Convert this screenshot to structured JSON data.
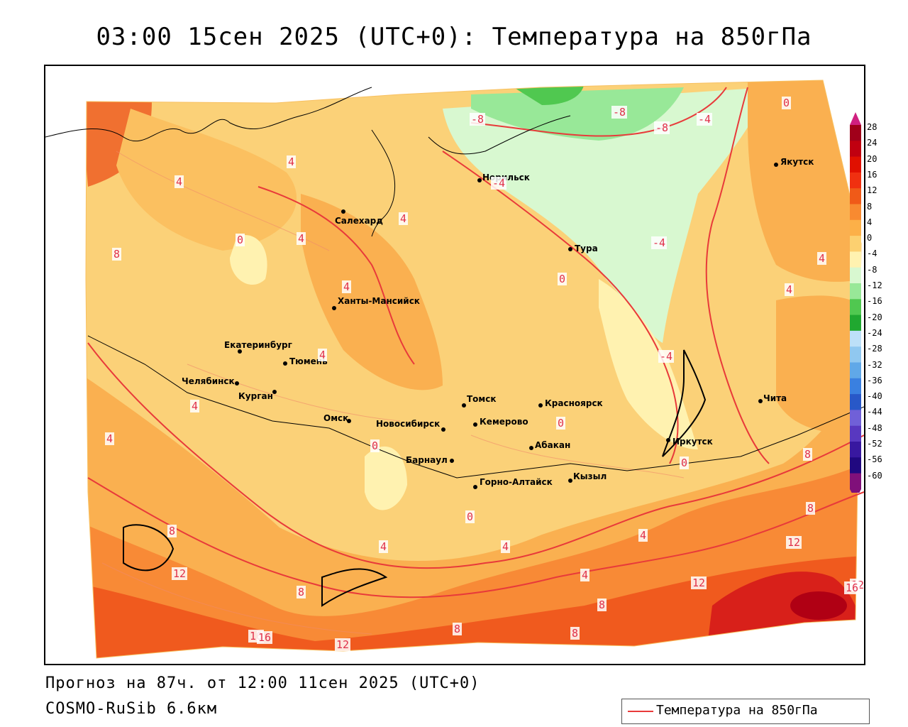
{
  "header": {
    "title": "03:00 15сен 2025 (UTC+0): Температура на 850гПа"
  },
  "footer": {
    "forecast": "Прогноз на 87ч. от 12:00 11сен 2025 (UTC+0)",
    "model": "COSMO-RuSib 6.6км"
  },
  "legend": {
    "label": "Температура на 850гПа",
    "line_color": "#e83a3a"
  },
  "colorbar": {
    "labels": [
      "28",
      "24",
      "20",
      "16",
      "12",
      "8",
      "4",
      "0",
      "-4",
      "-8",
      "-12",
      "-16",
      "-20",
      "-24",
      "-28",
      "-32",
      "-36",
      "-40",
      "-44",
      "-48",
      "-52",
      "-56",
      "-60"
    ],
    "colors": [
      "#a0001a",
      "#c00010",
      "#e01000",
      "#f03010",
      "#f05a18",
      "#f88a30",
      "#fcb048",
      "#fcd070",
      "#fff2b0",
      "#d8f8d0",
      "#98e898",
      "#50c850",
      "#20a830",
      "#bde0f8",
      "#90c8f0",
      "#60a8e8",
      "#3a80e0",
      "#2858c8",
      "#7060d8",
      "#5838c0",
      "#3818a0",
      "#200880",
      "#80107a"
    ]
  },
  "cities": [
    {
      "name": "Норильск"
    },
    {
      "name": "Якутск"
    },
    {
      "name": "Салехард"
    },
    {
      "name": "Тура"
    },
    {
      "name": "Ханты-Мансийск"
    },
    {
      "name": "Екатеринбург"
    },
    {
      "name": "Тюмень"
    },
    {
      "name": "Челябинск"
    },
    {
      "name": "Курган"
    },
    {
      "name": "Омск"
    },
    {
      "name": "Новосибирск"
    },
    {
      "name": "Томск"
    },
    {
      "name": "Кемерово"
    },
    {
      "name": "Красноярск"
    },
    {
      "name": "Абакан"
    },
    {
      "name": "Барнаул"
    },
    {
      "name": "Горно-Алтайск"
    },
    {
      "name": "Кызыл"
    },
    {
      "name": "Иркутск"
    },
    {
      "name": "Чита"
    }
  ],
  "isolines": [
    "-8",
    "-8",
    "-8",
    "-4",
    "-4",
    "-4",
    "-4",
    "0",
    "0",
    "0",
    "0",
    "0",
    "0",
    "0",
    "4",
    "4",
    "4",
    "4",
    "4",
    "4",
    "4",
    "4",
    "4",
    "4",
    "4",
    "4",
    "4",
    "4",
    "8",
    "8",
    "8",
    "8",
    "8",
    "8",
    "8",
    "8",
    "12",
    "12",
    "12",
    "12",
    "12",
    "16",
    "16",
    "16"
  ]
}
